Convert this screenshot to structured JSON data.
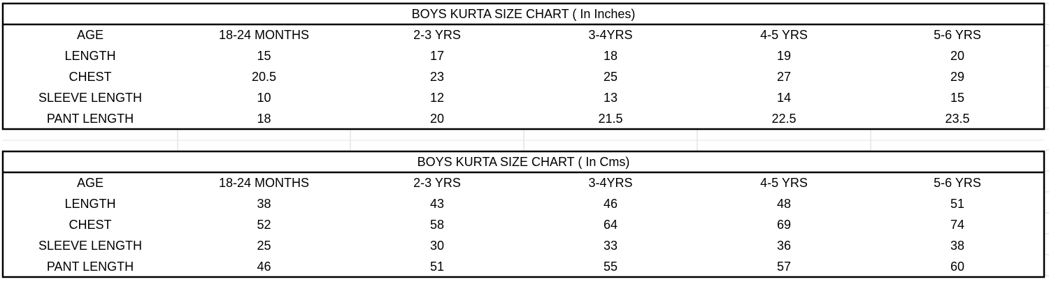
{
  "tables": [
    {
      "title": "BOYS KURTA SIZE CHART ( In Inches)",
      "header": [
        "AGE",
        "18-24 MONTHS",
        "2-3 YRS",
        "3-4YRS",
        "4-5 YRS",
        "5-6 YRS"
      ],
      "rows": [
        [
          "LENGTH",
          "15",
          "17",
          "18",
          "19",
          "20"
        ],
        [
          "CHEST",
          "20.5",
          "23",
          "25",
          "27",
          "29"
        ],
        [
          "SLEEVE LENGTH",
          "10",
          "12",
          "13",
          "14",
          "15"
        ],
        [
          "PANT LENGTH",
          "18",
          "20",
          "21.5",
          "22.5",
          "23.5"
        ]
      ]
    },
    {
      "title": "BOYS KURTA SIZE CHART ( In Cms)",
      "header": [
        "AGE",
        "18-24 MONTHS",
        "2-3 YRS",
        "3-4YRS",
        "4-5 YRS",
        "5-6 YRS"
      ],
      "rows": [
        [
          "LENGTH",
          "38",
          "43",
          "46",
          "48",
          "51"
        ],
        [
          "CHEST",
          "52",
          "58",
          "64",
          "69",
          "74"
        ],
        [
          "SLEEVE LENGTH",
          "25",
          "30",
          "33",
          "36",
          "38"
        ],
        [
          "PANT LENGTH",
          "46",
          "51",
          "55",
          "57",
          "60"
        ]
      ]
    }
  ]
}
